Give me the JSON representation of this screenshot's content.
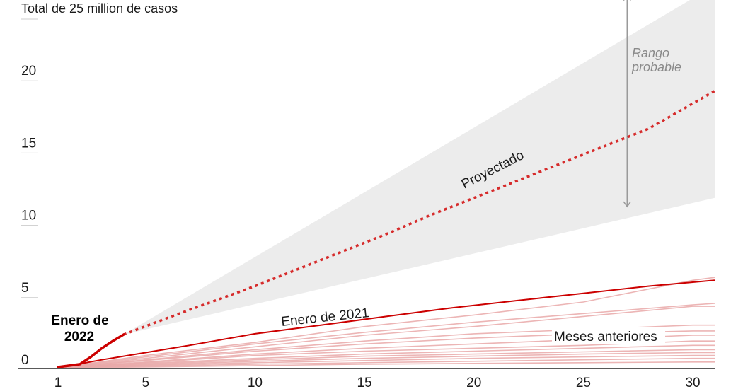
{
  "chart_data": {
    "type": "line",
    "title": "Total de 25 million de casos",
    "xlabel": "",
    "ylabel": "",
    "xlim": [
      1,
      31
    ],
    "ylim": [
      0,
      25
    ],
    "x_ticks": [
      1,
      5,
      10,
      15,
      20,
      25,
      30
    ],
    "y_ticks": [
      0,
      5,
      10,
      15,
      20
    ],
    "grid": false,
    "colors": {
      "current": "#cc0000",
      "projected": "#d62b2b",
      "prior": "#e9a8a8",
      "band": "#ececec",
      "range_arrow": "#9a9a9a"
    },
    "series": [
      {
        "name": "Enero de 2022",
        "x": [
          1,
          2,
          2.5,
          3,
          3.5,
          4
        ],
        "values": [
          0.1,
          0.3,
          0.8,
          1.4,
          1.9,
          2.35
        ]
      },
      {
        "name": "Proyectado",
        "style": "dotted",
        "x": [
          4,
          6,
          8,
          10,
          12,
          14,
          16,
          18,
          20,
          22,
          24,
          26,
          28,
          31
        ],
        "values": [
          2.35,
          3.5,
          4.6,
          5.7,
          6.9,
          8.1,
          9.3,
          10.6,
          11.8,
          13.0,
          14.2,
          15.4,
          16.6,
          19.2
        ]
      },
      {
        "name": "Enero de 2021",
        "x": [
          1,
          3,
          5,
          7,
          10,
          13,
          16,
          19,
          22,
          25,
          28,
          31
        ],
        "values": [
          0.05,
          0.6,
          1.1,
          1.6,
          2.4,
          3.0,
          3.6,
          4.2,
          4.7,
          5.2,
          5.7,
          6.1
        ]
      },
      {
        "name": "Meses anteriores",
        "x": [
          1,
          5,
          10,
          15,
          20,
          25,
          30,
          31
        ],
        "lines": [
          [
            0.05,
            0.9,
            1.8,
            2.9,
            3.7,
            4.6,
            6.1,
            6.3
          ],
          [
            0.05,
            0.8,
            1.7,
            2.5,
            3.2,
            3.8,
            4.4,
            4.5
          ],
          [
            0.05,
            0.7,
            1.5,
            2.3,
            2.9,
            3.6,
            4.3,
            4.3
          ],
          [
            0.05,
            0.6,
            1.3,
            1.9,
            2.4,
            2.7,
            3.0,
            3.0
          ],
          [
            0.05,
            0.55,
            1.2,
            1.7,
            2.1,
            2.4,
            2.6,
            2.6
          ],
          [
            0.05,
            0.45,
            1.0,
            1.4,
            1.7,
            2.0,
            2.3,
            2.3
          ],
          [
            0.05,
            0.4,
            0.9,
            1.2,
            1.4,
            1.6,
            1.9,
            1.9
          ],
          [
            0.05,
            0.35,
            0.7,
            1.0,
            1.2,
            1.4,
            1.6,
            1.6
          ],
          [
            0.05,
            0.3,
            0.6,
            0.85,
            1.0,
            1.15,
            1.3,
            1.3
          ],
          [
            0.05,
            0.25,
            0.5,
            0.7,
            0.85,
            1.0,
            1.1,
            1.1
          ],
          [
            0.05,
            0.2,
            0.4,
            0.55,
            0.7,
            0.8,
            0.9,
            0.9
          ],
          [
            0.05,
            0.15,
            0.3,
            0.4,
            0.5,
            0.6,
            0.7,
            0.7
          ],
          [
            0.05,
            0.1,
            0.2,
            0.3,
            0.35,
            0.4,
            0.45,
            0.45
          ]
        ]
      }
    ],
    "range_band": {
      "x": [
        4,
        31
      ],
      "upper": [
        2.35,
        26.5
      ],
      "lower": [
        2.35,
        11.8
      ]
    },
    "range_arrow": {
      "x": 27,
      "from": 11.2,
      "to": 25.8
    },
    "annotations": {
      "current_line1": "Enero de",
      "current_line2": "2022",
      "projected": "Proyectado",
      "jan2021": "Enero de 2021",
      "previous": "Meses anteriores",
      "range_line1": "Rango",
      "range_line2": "probable"
    }
  }
}
